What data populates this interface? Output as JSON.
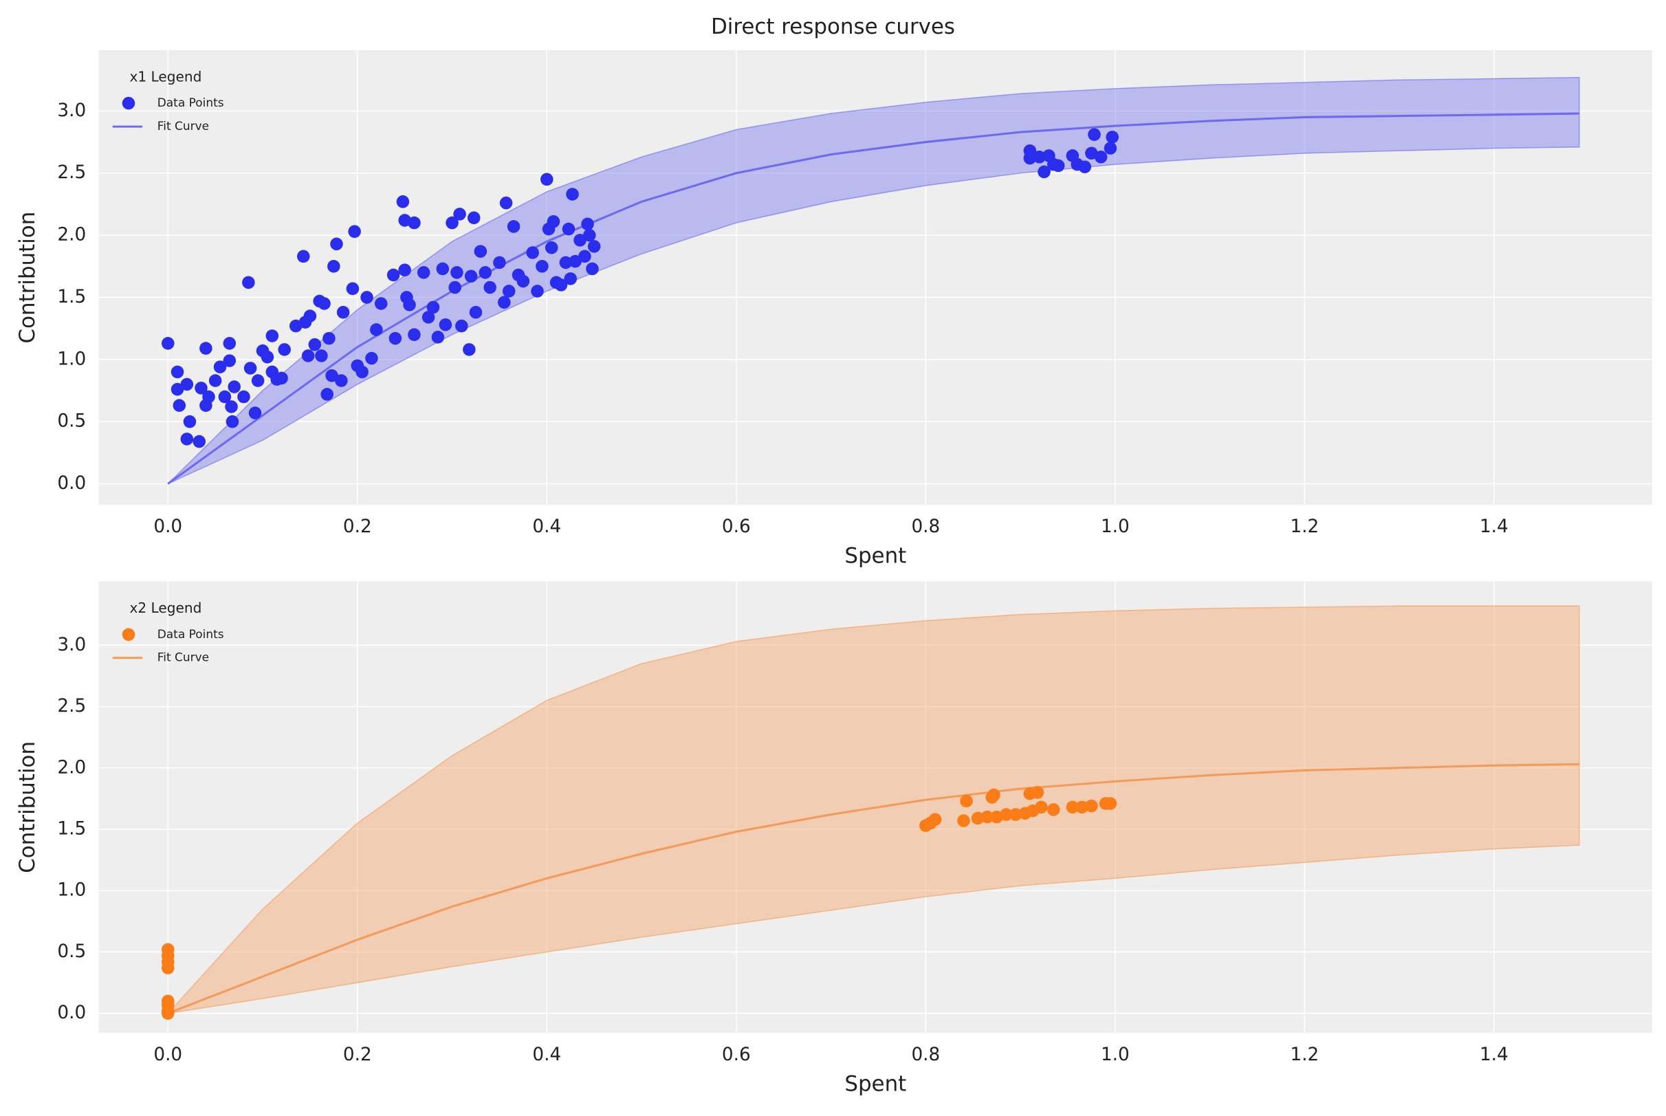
{
  "title": "Direct response curves",
  "chart_data": [
    {
      "type": "scatter",
      "legend_title": "x1 Legend",
      "legend": "upper left",
      "grid": true,
      "xlabel": "Spent",
      "ylabel": "Contribution",
      "xlim": [
        -0.073,
        1.567
      ],
      "ylim": [
        -0.17,
        3.49
      ],
      "xticks": [
        {
          "value": 0,
          "label": "0.0"
        },
        {
          "value": 0.2,
          "label": "0.2"
        },
        {
          "value": 0.4,
          "label": "0.4"
        },
        {
          "value": 0.6,
          "label": "0.6"
        },
        {
          "value": 0.8,
          "label": "0.8"
        },
        {
          "value": 1,
          "label": "1.0"
        },
        {
          "value": 1.2,
          "label": "1.2"
        },
        {
          "value": 1.4,
          "label": "1.4"
        }
      ],
      "yticks": [
        {
          "value": 0,
          "label": "0.0"
        },
        {
          "value": 0.5,
          "label": "0.5"
        },
        {
          "value": 1,
          "label": "1.0"
        },
        {
          "value": 1.5,
          "label": "1.5"
        },
        {
          "value": 2,
          "label": "2.0"
        },
        {
          "value": 2.5,
          "label": "2.5"
        },
        {
          "value": 3,
          "label": "3.0"
        }
      ],
      "series": [
        {
          "name": "Data Points",
          "type": "scatter",
          "color": "#2a2eec",
          "x": [
            0.0,
            0.01,
            0.01,
            0.012,
            0.02,
            0.02,
            0.023,
            0.033,
            0.035,
            0.04,
            0.04,
            0.043,
            0.05,
            0.055,
            0.06,
            0.065,
            0.065,
            0.067,
            0.068,
            0.07,
            0.08,
            0.085,
            0.087,
            0.092,
            0.095,
            0.1,
            0.105,
            0.11,
            0.11,
            0.115,
            0.12,
            0.123,
            0.135,
            0.143,
            0.145,
            0.148,
            0.15,
            0.155,
            0.16,
            0.162,
            0.165,
            0.168,
            0.17,
            0.173,
            0.175,
            0.178,
            0.183,
            0.185,
            0.195,
            0.197,
            0.2,
            0.205,
            0.21,
            0.215,
            0.22,
            0.225,
            0.238,
            0.24,
            0.248,
            0.25,
            0.25,
            0.252,
            0.255,
            0.26,
            0.26,
            0.27,
            0.275,
            0.28,
            0.285,
            0.29,
            0.293,
            0.3,
            0.303,
            0.305,
            0.308,
            0.31,
            0.318,
            0.32,
            0.323,
            0.325,
            0.33,
            0.335,
            0.34,
            0.35,
            0.355,
            0.357,
            0.36,
            0.365,
            0.37,
            0.375,
            0.385,
            0.39,
            0.395,
            0.4,
            0.402,
            0.405,
            0.407,
            0.41,
            0.415,
            0.42,
            0.423,
            0.425,
            0.427,
            0.43,
            0.435,
            0.44,
            0.443,
            0.445,
            0.448,
            0.45,
            0.91,
            0.91,
            0.92,
            0.925,
            0.93,
            0.935,
            0.94,
            0.955,
            0.96,
            0.968,
            0.975,
            0.978,
            0.985,
            0.995,
            0.997
          ],
          "values": [
            1.13,
            0.9,
            0.76,
            0.63,
            0.8,
            0.36,
            0.5,
            0.34,
            0.77,
            1.09,
            0.63,
            0.7,
            0.83,
            0.94,
            0.7,
            0.99,
            1.13,
            0.62,
            0.5,
            0.78,
            0.7,
            1.62,
            0.93,
            0.57,
            0.83,
            1.07,
            1.02,
            0.9,
            1.19,
            0.84,
            0.85,
            1.08,
            1.27,
            1.83,
            1.3,
            1.03,
            1.35,
            1.12,
            1.47,
            1.03,
            1.45,
            0.72,
            1.17,
            0.87,
            1.75,
            1.93,
            0.83,
            1.38,
            1.57,
            2.03,
            0.95,
            0.9,
            1.5,
            1.01,
            1.24,
            1.45,
            1.68,
            1.17,
            2.27,
            2.12,
            1.72,
            1.5,
            1.44,
            2.1,
            1.2,
            1.7,
            1.34,
            1.42,
            1.18,
            1.73,
            1.28,
            2.1,
            1.58,
            1.7,
            2.17,
            1.27,
            1.08,
            1.67,
            2.14,
            1.38,
            1.87,
            1.7,
            1.58,
            1.78,
            1.46,
            2.26,
            1.55,
            2.07,
            1.68,
            1.63,
            1.86,
            1.55,
            1.75,
            2.45,
            2.05,
            1.9,
            2.11,
            1.62,
            1.6,
            1.78,
            2.05,
            1.65,
            2.33,
            1.79,
            1.96,
            1.83,
            2.09,
            2.0,
            1.73,
            1.91,
            2.68,
            2.62,
            2.63,
            2.51,
            2.64,
            2.57,
            2.56,
            2.64,
            2.57,
            2.55,
            2.66,
            2.81,
            2.63,
            2.7,
            2.79
          ]
        },
        {
          "name": "Fit Curve",
          "type": "line",
          "color": "#6b6bee",
          "x": [
            0,
            0.1,
            0.2,
            0.3,
            0.4,
            0.5,
            0.6,
            0.7,
            0.8,
            0.9,
            1.0,
            1.1,
            1.2,
            1.3,
            1.4,
            1.49
          ],
          "values": [
            0,
            0.55,
            1.1,
            1.55,
            1.95,
            2.27,
            2.5,
            2.65,
            2.75,
            2.83,
            2.88,
            2.92,
            2.95,
            2.96,
            2.97,
            2.98
          ],
          "upper": [
            0,
            0.75,
            1.4,
            1.95,
            2.35,
            2.63,
            2.85,
            2.98,
            3.07,
            3.14,
            3.18,
            3.21,
            3.23,
            3.25,
            3.26,
            3.27
          ],
          "lower": [
            0,
            0.35,
            0.8,
            1.2,
            1.55,
            1.85,
            2.1,
            2.27,
            2.4,
            2.5,
            2.57,
            2.62,
            2.66,
            2.68,
            2.7,
            2.71
          ]
        }
      ]
    },
    {
      "type": "scatter",
      "legend_title": "x2 Legend",
      "legend": "upper left",
      "grid": true,
      "xlabel": "Spent",
      "ylabel": "Contribution",
      "xlim": [
        -0.073,
        1.567
      ],
      "ylim": [
        -0.16,
        3.52
      ],
      "xticks": [
        {
          "value": 0,
          "label": "0.0"
        },
        {
          "value": 0.2,
          "label": "0.2"
        },
        {
          "value": 0.4,
          "label": "0.4"
        },
        {
          "value": 0.6,
          "label": "0.6"
        },
        {
          "value": 0.8,
          "label": "0.8"
        },
        {
          "value": 1,
          "label": "1.0"
        },
        {
          "value": 1.2,
          "label": "1.2"
        },
        {
          "value": 1.4,
          "label": "1.4"
        }
      ],
      "yticks": [
        {
          "value": 0,
          "label": "0.0"
        },
        {
          "value": 0.5,
          "label": "0.5"
        },
        {
          "value": 1,
          "label": "1.0"
        },
        {
          "value": 1.5,
          "label": "1.5"
        },
        {
          "value": 2,
          "label": "2.0"
        },
        {
          "value": 2.5,
          "label": "2.5"
        },
        {
          "value": 3,
          "label": "3.0"
        }
      ],
      "series": [
        {
          "name": "Data Points",
          "type": "scatter",
          "color": "#fa7c17",
          "x": [
            0,
            0,
            0,
            0,
            0,
            0,
            0,
            0,
            0.8,
            0.805,
            0.81,
            0.84,
            0.843,
            0.855,
            0.865,
            0.87,
            0.872,
            0.875,
            0.885,
            0.895,
            0.905,
            0.91,
            0.913,
            0.918,
            0.922,
            0.935,
            0.955,
            0.965,
            0.975,
            0.99,
            0.995
          ],
          "values": [
            0.0,
            0.02,
            0.07,
            0.1,
            0.37,
            0.42,
            0.47,
            0.52,
            1.53,
            1.55,
            1.58,
            1.57,
            1.73,
            1.59,
            1.6,
            1.76,
            1.78,
            1.6,
            1.62,
            1.62,
            1.63,
            1.79,
            1.65,
            1.8,
            1.68,
            1.66,
            1.68,
            1.68,
            1.69,
            1.71,
            1.71
          ]
        },
        {
          "name": "Fit Curve",
          "type": "line",
          "color": "#f49b5a",
          "x": [
            0,
            0.1,
            0.2,
            0.3,
            0.4,
            0.5,
            0.6,
            0.7,
            0.8,
            0.9,
            1.0,
            1.1,
            1.2,
            1.3,
            1.4,
            1.49
          ],
          "values": [
            0,
            0.3,
            0.6,
            0.87,
            1.1,
            1.3,
            1.48,
            1.62,
            1.74,
            1.83,
            1.89,
            1.94,
            1.98,
            2.0,
            2.02,
            2.03
          ],
          "upper": [
            0,
            0.85,
            1.55,
            2.1,
            2.55,
            2.85,
            3.03,
            3.13,
            3.2,
            3.25,
            3.28,
            3.3,
            3.31,
            3.32,
            3.32,
            3.32
          ],
          "lower": [
            0,
            0.12,
            0.25,
            0.38,
            0.5,
            0.62,
            0.73,
            0.84,
            0.95,
            1.04,
            1.1,
            1.17,
            1.23,
            1.29,
            1.34,
            1.37
          ]
        }
      ]
    }
  ]
}
